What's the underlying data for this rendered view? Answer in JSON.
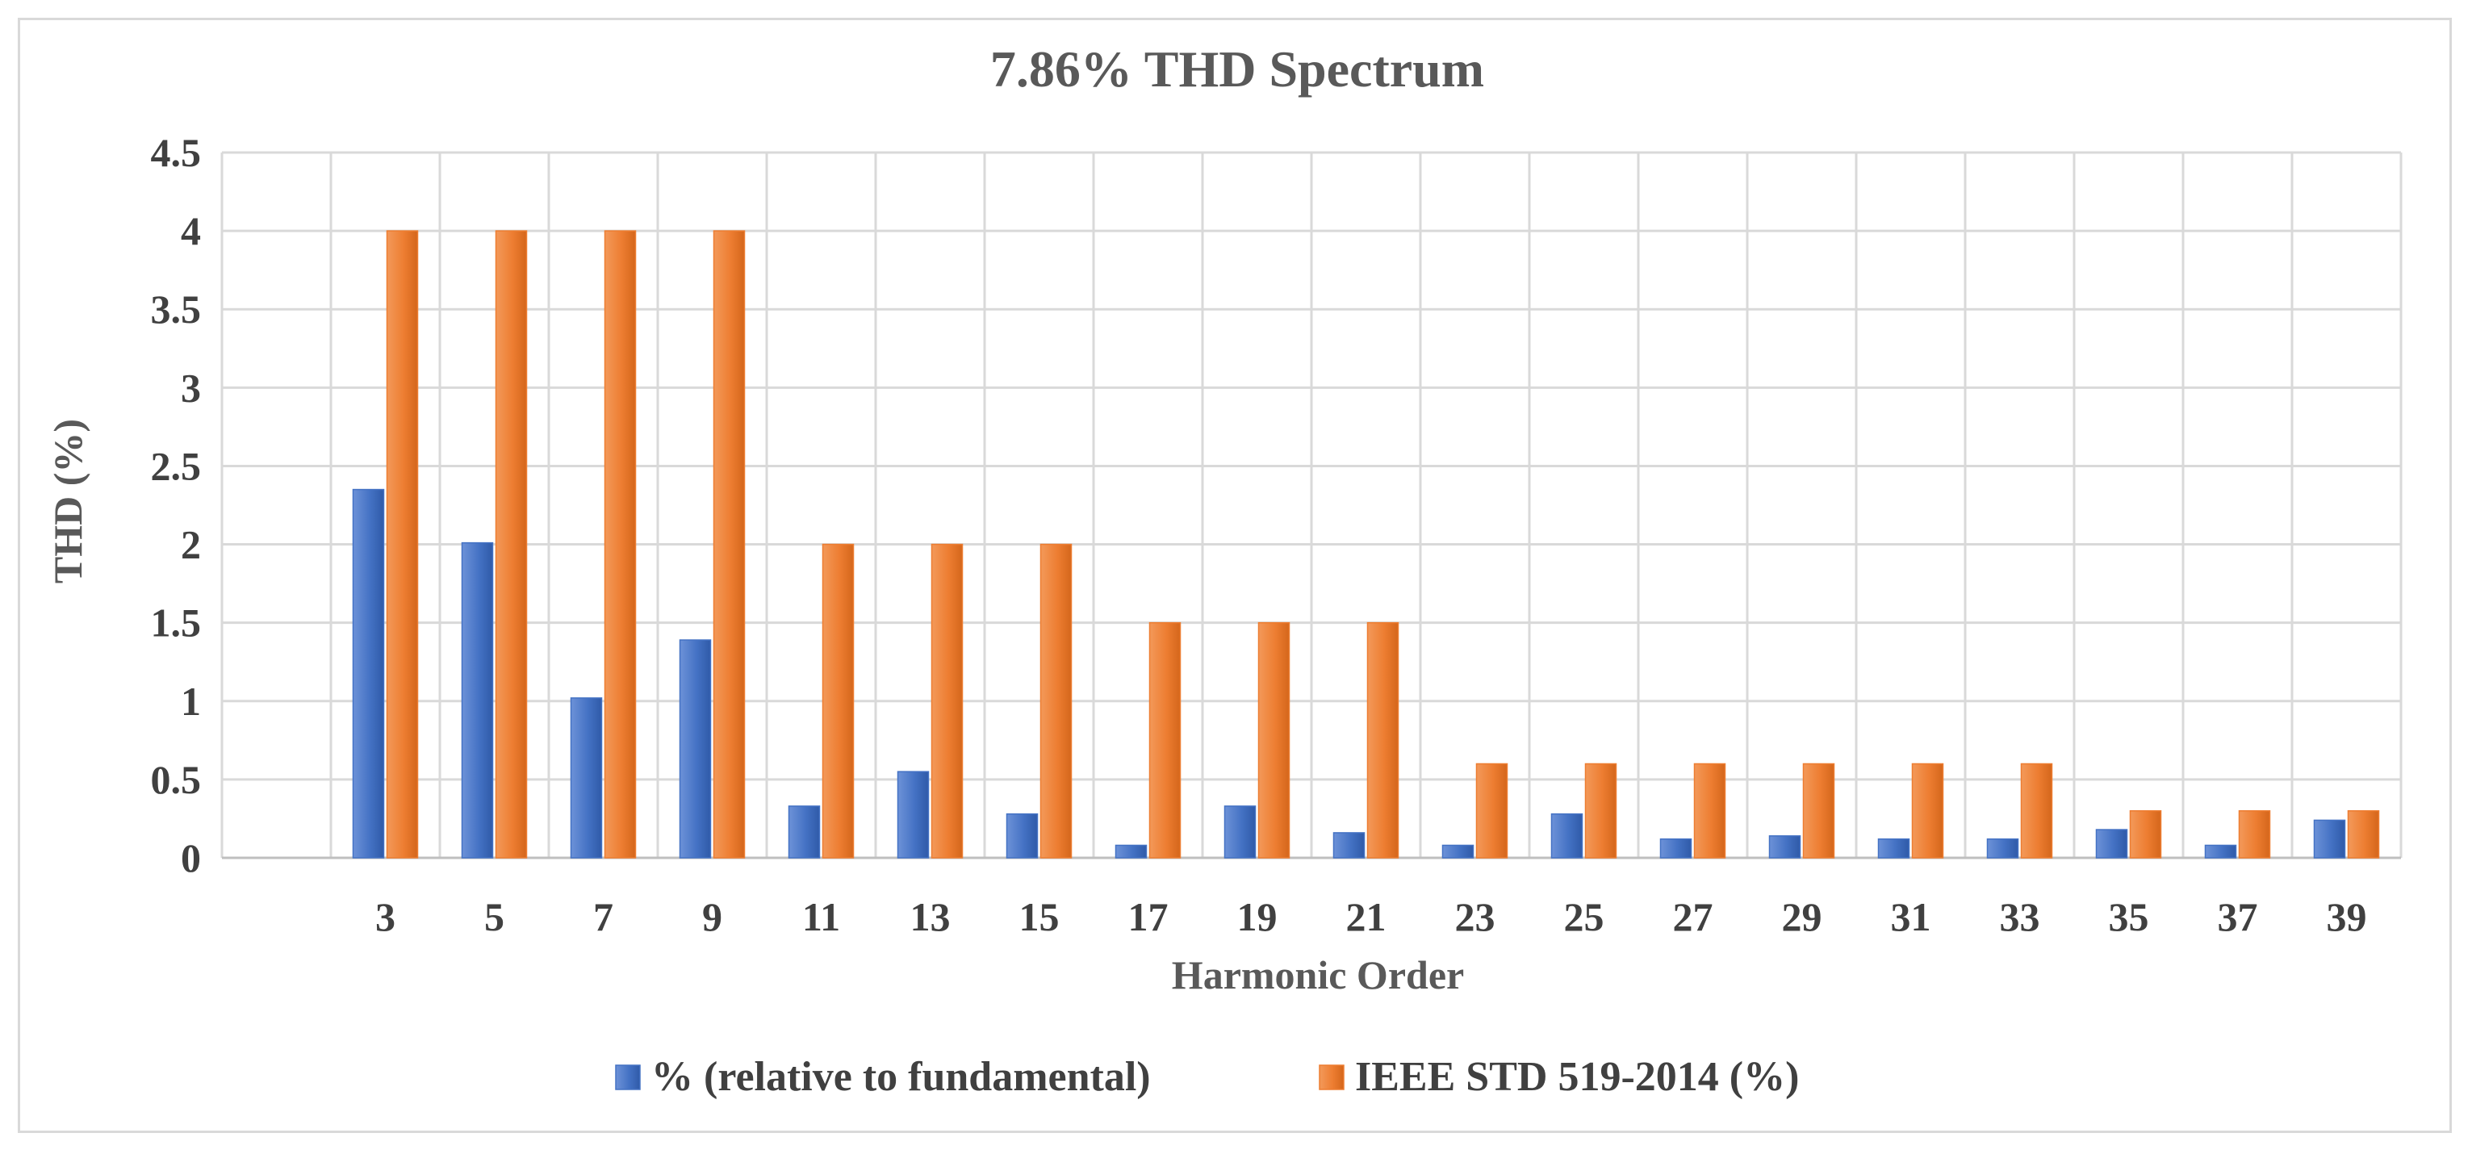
{
  "chart_data": {
    "type": "bar",
    "title": "7.86% THD Spectrum",
    "xlabel": "Harmonic Order",
    "ylabel": "THD (%)",
    "ylim": [
      0,
      4.5
    ],
    "yticks": [
      "0",
      "0.5",
      "1",
      "1.5",
      "2",
      "2.5",
      "3",
      "3.5",
      "4",
      "4.5"
    ],
    "grid": true,
    "legend_position": "bottom",
    "categories": [
      "3",
      "5",
      "7",
      "9",
      "11",
      "13",
      "15",
      "17",
      "19",
      "21",
      "23",
      "25",
      "27",
      "29",
      "31",
      "33",
      "35",
      "37",
      "39"
    ],
    "series": [
      {
        "name": "% (relative to fundamental)",
        "color": "#4472c4",
        "values": [
          2.35,
          2.01,
          1.02,
          1.39,
          0.33,
          0.55,
          0.28,
          0.08,
          0.33,
          0.16,
          0.08,
          0.28,
          0.12,
          0.14,
          0.12,
          0.12,
          0.18,
          0.08,
          0.24
        ]
      },
      {
        "name": "IEEE STD 519-2014 (%)",
        "color": "#ed7d31",
        "values": [
          4,
          4,
          4,
          4,
          2,
          2,
          2,
          1.5,
          1.5,
          1.5,
          0.6,
          0.6,
          0.6,
          0.6,
          0.6,
          0.6,
          0.3,
          0.3,
          0.3
        ]
      }
    ]
  }
}
